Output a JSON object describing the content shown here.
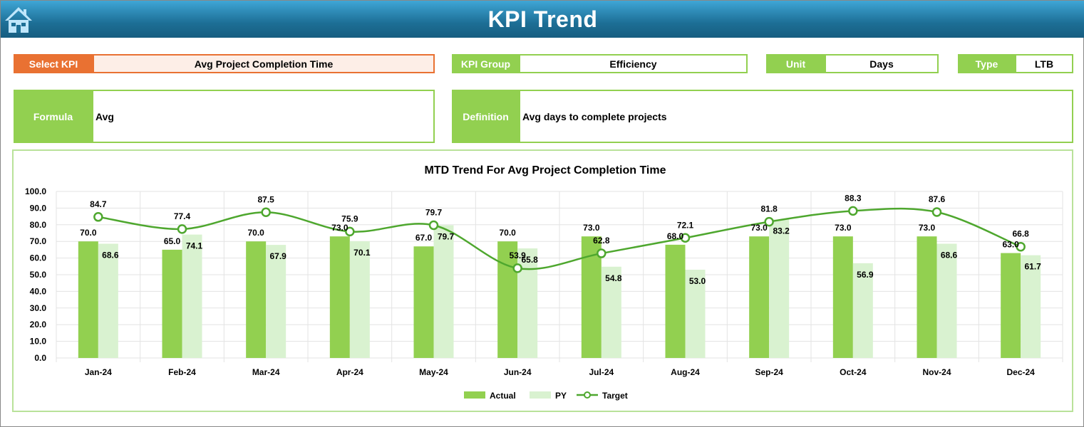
{
  "header": {
    "title": "KPI Trend",
    "home_icon": "home-icon"
  },
  "fields": {
    "select_kpi_label": "Select KPI",
    "select_kpi_value": "Avg Project Completion Time",
    "kpi_group_label": "KPI Group",
    "kpi_group_value": "Efficiency",
    "unit_label": "Unit",
    "unit_value": "Days",
    "type_label": "Type",
    "type_value": "LTB",
    "formula_label": "Formula",
    "formula_value": "Avg",
    "definition_label": "Definition",
    "definition_value": "Avg days to complete projects"
  },
  "colors": {
    "actual": "#92D050",
    "py": "#D9F2D0",
    "target": "#4EA72E",
    "select": "#E97132"
  },
  "chart_data": {
    "type": "bar",
    "title": "MTD Trend For Avg Project Completion Time",
    "categories": [
      "Jan-24",
      "Feb-24",
      "Mar-24",
      "Apr-24",
      "May-24",
      "Jun-24",
      "Jul-24",
      "Aug-24",
      "Sep-24",
      "Oct-24",
      "Nov-24",
      "Dec-24"
    ],
    "series": [
      {
        "name": "Actual",
        "type": "bar",
        "values": [
          70.0,
          65.0,
          70.0,
          73.0,
          67.0,
          70.0,
          73.0,
          68.0,
          73.0,
          73.0,
          73.0,
          63.0
        ]
      },
      {
        "name": "PY",
        "type": "bar",
        "values": [
          68.6,
          74.1,
          67.9,
          70.1,
          79.7,
          65.8,
          54.8,
          53.0,
          83.2,
          56.9,
          68.6,
          61.7
        ]
      },
      {
        "name": "Target",
        "type": "line",
        "values": [
          84.7,
          77.4,
          87.5,
          75.9,
          79.7,
          53.9,
          62.8,
          72.1,
          81.8,
          88.3,
          87.6,
          66.8
        ]
      }
    ],
    "yticks": [
      "0.0",
      "10.0",
      "20.0",
      "30.0",
      "40.0",
      "50.0",
      "60.0",
      "70.0",
      "80.0",
      "90.0",
      "100.0"
    ],
    "ylim": [
      0,
      100
    ],
    "grid": true,
    "legend": "bottom"
  }
}
